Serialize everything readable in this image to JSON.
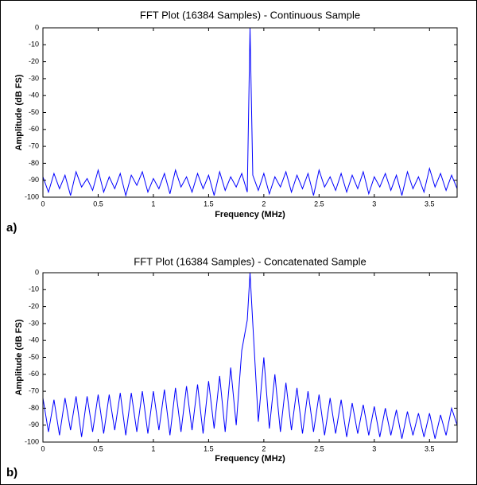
{
  "chart_data": [
    {
      "type": "line",
      "title": "FFT Plot (16384 Samples) - Continuous Sample",
      "xlabel": "Frequency (MHz)",
      "ylabel": "Amplitude (dB FS)",
      "panel_label": "a)",
      "x": [
        0,
        0.05,
        0.1,
        0.15,
        0.2,
        0.25,
        0.3,
        0.35,
        0.4,
        0.45,
        0.5,
        0.55,
        0.6,
        0.65,
        0.7,
        0.75,
        0.8,
        0.85,
        0.9,
        0.95,
        1,
        1.05,
        1.1,
        1.15,
        1.2,
        1.25,
        1.3,
        1.35,
        1.4,
        1.45,
        1.5,
        1.55,
        1.6,
        1.65,
        1.7,
        1.75,
        1.8,
        1.85,
        1.875,
        1.9,
        1.95,
        2,
        2.05,
        2.1,
        2.15,
        2.2,
        2.25,
        2.3,
        2.35,
        2.4,
        2.45,
        2.5,
        2.55,
        2.6,
        2.65,
        2.7,
        2.75,
        2.8,
        2.85,
        2.9,
        2.95,
        3,
        3.05,
        3.1,
        3.15,
        3.2,
        3.25,
        3.3,
        3.35,
        3.4,
        3.45,
        3.5,
        3.55,
        3.6,
        3.65,
        3.7,
        3.75
      ],
      "series": [
        {
          "color": "#0000ff",
          "values": [
            -88,
            -97,
            -86,
            -95,
            -87,
            -99,
            -85,
            -94,
            -89,
            -96,
            -84,
            -97,
            -88,
            -95,
            -86,
            -99,
            -87,
            -93,
            -85,
            -97,
            -89,
            -95,
            -86,
            -98,
            -84,
            -94,
            -88,
            -97,
            -86,
            -95,
            -87,
            -99,
            -85,
            -96,
            -88,
            -94,
            -86,
            -97,
            0,
            -87,
            -96,
            -86,
            -98,
            -88,
            -94,
            -85,
            -97,
            -87,
            -95,
            -86,
            -99,
            -84,
            -94,
            -88,
            -96,
            -86,
            -97,
            -87,
            -95,
            -85,
            -98,
            -88,
            -94,
            -86,
            -96,
            -87,
            -99,
            -85,
            -95,
            -88,
            -97,
            -83,
            -94,
            -86,
            -96,
            -87,
            -95
          ]
        }
      ],
      "xlim": [
        0,
        3.75
      ],
      "ylim": [
        -100,
        0
      ],
      "xticks": [
        0,
        0.5,
        1,
        1.5,
        2,
        2.5,
        3,
        3.5
      ],
      "yticks": [
        -100,
        -90,
        -80,
        -70,
        -60,
        -50,
        -40,
        -30,
        -20,
        -10,
        0
      ]
    },
    {
      "type": "line",
      "title": "FFT Plot (16384 Samples) - Concatenated Sample",
      "xlabel": "Frequency (MHz)",
      "ylabel": "Amplitude (dB FS)",
      "panel_label": "b)",
      "x": [
        0,
        0.05,
        0.1,
        0.15,
        0.2,
        0.25,
        0.3,
        0.35,
        0.4,
        0.45,
        0.5,
        0.55,
        0.6,
        0.65,
        0.7,
        0.75,
        0.8,
        0.85,
        0.9,
        0.95,
        1,
        1.05,
        1.1,
        1.15,
        1.2,
        1.25,
        1.3,
        1.35,
        1.4,
        1.45,
        1.5,
        1.55,
        1.6,
        1.65,
        1.7,
        1.75,
        1.8,
        1.85,
        1.875,
        1.9,
        1.95,
        2,
        2.05,
        2.1,
        2.15,
        2.2,
        2.25,
        2.3,
        2.35,
        2.4,
        2.45,
        2.5,
        2.55,
        2.6,
        2.65,
        2.7,
        2.75,
        2.8,
        2.85,
        2.9,
        2.95,
        3,
        3.05,
        3.1,
        3.15,
        3.2,
        3.25,
        3.3,
        3.35,
        3.4,
        3.45,
        3.5,
        3.55,
        3.6,
        3.65,
        3.7,
        3.75
      ],
      "series": [
        {
          "color": "#0000ff",
          "values": [
            -74,
            -94,
            -75,
            -96,
            -74,
            -93,
            -73,
            -97,
            -73,
            -94,
            -72,
            -95,
            -72,
            -93,
            -71,
            -96,
            -71,
            -94,
            -70,
            -95,
            -70,
            -93,
            -69,
            -96,
            -68,
            -94,
            -67,
            -93,
            -66,
            -95,
            -64,
            -92,
            -61,
            -94,
            -56,
            -90,
            -46,
            -28,
            0,
            -30,
            -88,
            -50,
            -92,
            -60,
            -94,
            -65,
            -93,
            -68,
            -95,
            -70,
            -94,
            -72,
            -96,
            -74,
            -95,
            -75,
            -97,
            -77,
            -95,
            -78,
            -96,
            -79,
            -97,
            -80,
            -96,
            -81,
            -98,
            -82,
            -96,
            -83,
            -97,
            -83,
            -98,
            -84,
            -96,
            -80,
            -90
          ]
        }
      ],
      "xlim": [
        0,
        3.75
      ],
      "ylim": [
        -100,
        0
      ],
      "xticks": [
        0,
        0.5,
        1,
        1.5,
        2,
        2.5,
        3,
        3.5
      ],
      "yticks": [
        -100,
        -90,
        -80,
        -70,
        -60,
        -50,
        -40,
        -30,
        -20,
        -10,
        0
      ]
    }
  ]
}
